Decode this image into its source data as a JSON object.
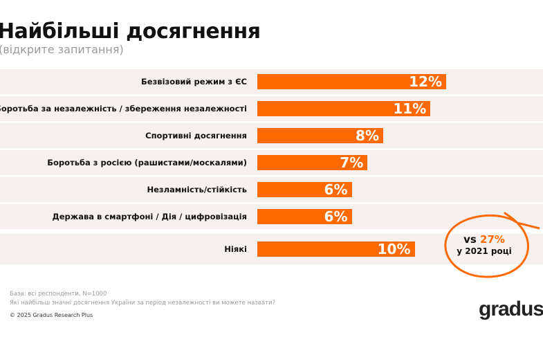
{
  "header": {
    "title": "Найбільші досягнення",
    "subtitle": "(відкрите запитання)"
  },
  "chart_data": {
    "type": "bar",
    "orientation": "horizontal",
    "categories": [
      "Безвізовий режим з ЄС",
      "Боротьба за незалежність / збереження незалежності",
      "Спортивні досягнення",
      "Боротьба з росією (рашистами/москалями)",
      "Незламність/стійкість",
      "Держава в смартфоні / Дія / цифровізація",
      "Ніякі"
    ],
    "values": [
      12,
      11,
      8,
      7,
      6,
      6,
      10
    ],
    "data_labels": [
      "12%",
      "11%",
      "8%",
      "7%",
      "6%",
      "6%",
      "10%"
    ],
    "unit": "%",
    "bar_color": "#ff6a00",
    "band_color": "#f6f1ef",
    "grid": false,
    "annotation": {
      "prefix": "vs",
      "value": "27%",
      "suffix": "у 2021 році",
      "target": "Ніякі"
    }
  },
  "footer": {
    "base": "База: всі респонденти, N=1000",
    "question": "Які найбільш значні досягнення України за період незалежності ви можете назвати?",
    "copyright": "© 2025 Gradus Research Plus",
    "logo": "gradus"
  }
}
